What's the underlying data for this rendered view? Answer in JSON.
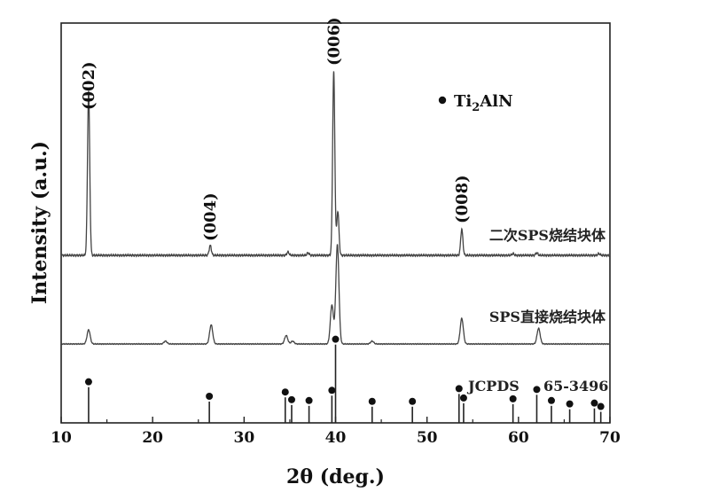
{
  "chart_data": {
    "type": "line",
    "xlabel": "2θ (deg.)",
    "ylabel": "Intensity (a.u.)",
    "xlim": [
      10,
      70
    ],
    "x_ticks": [
      "10",
      "20",
      "30",
      "40",
      "50",
      "60",
      "70"
    ],
    "y_ticks_labeled": false,
    "grid": false,
    "legend": {
      "marker": "filled-circle",
      "label": "Ti",
      "sub": "2",
      "suffix": "AlN",
      "placement": "top-right"
    },
    "series": [
      {
        "name": "二次SPS烧结块体",
        "peaks": [
          {
            "x": 13.0,
            "h": 1.0
          },
          {
            "x": 26.3,
            "h": 0.06
          },
          {
            "x": 34.8,
            "h": 0.02
          },
          {
            "x": 37.0,
            "h": 0.015
          },
          {
            "x": 39.8,
            "h": 1.12
          },
          {
            "x": 40.25,
            "h": 0.27
          },
          {
            "x": 53.8,
            "h": 0.16
          },
          {
            "x": 59.4,
            "h": 0.01
          },
          {
            "x": 62.0,
            "h": 0.015
          },
          {
            "x": 68.8,
            "h": 0.01
          }
        ]
      },
      {
        "name": "SPS直接烧结块体",
        "peaks": [
          {
            "x": 13.0,
            "h": 0.2
          },
          {
            "x": 21.4,
            "h": 0.04
          },
          {
            "x": 26.4,
            "h": 0.27
          },
          {
            "x": 34.6,
            "h": 0.12
          },
          {
            "x": 35.3,
            "h": 0.04
          },
          {
            "x": 39.6,
            "h": 0.55
          },
          {
            "x": 40.2,
            "h": 1.4
          },
          {
            "x": 44.0,
            "h": 0.04
          },
          {
            "x": 53.8,
            "h": 0.36
          },
          {
            "x": 62.2,
            "h": 0.22
          }
        ]
      }
    ],
    "reference": {
      "name": "JCPDS 65-3496",
      "sticks": [
        {
          "x": 13.0,
          "h": 0.42
        },
        {
          "x": 26.2,
          "h": 0.25
        },
        {
          "x": 34.5,
          "h": 0.3
        },
        {
          "x": 35.2,
          "h": 0.21
        },
        {
          "x": 37.1,
          "h": 0.2
        },
        {
          "x": 39.6,
          "h": 0.32
        },
        {
          "x": 40.0,
          "h": 0.92
        },
        {
          "x": 44.0,
          "h": 0.19
        },
        {
          "x": 48.4,
          "h": 0.19
        },
        {
          "x": 53.5,
          "h": 0.34
        },
        {
          "x": 54.0,
          "h": 0.23
        },
        {
          "x": 59.4,
          "h": 0.22
        },
        {
          "x": 62.0,
          "h": 0.33
        },
        {
          "x": 63.6,
          "h": 0.2
        },
        {
          "x": 65.6,
          "h": 0.16
        },
        {
          "x": 68.3,
          "h": 0.17
        },
        {
          "x": 69.0,
          "h": 0.13
        }
      ]
    },
    "peak_labels": [
      {
        "text": "(002)",
        "x": 13.0
      },
      {
        "text": "(004)",
        "x": 26.3
      },
      {
        "text": "(006)",
        "x": 39.8
      },
      {
        "text": "(008)",
        "x": 53.8
      }
    ],
    "reference_label_parts": [
      "JCPDS",
      "65-3496"
    ]
  }
}
